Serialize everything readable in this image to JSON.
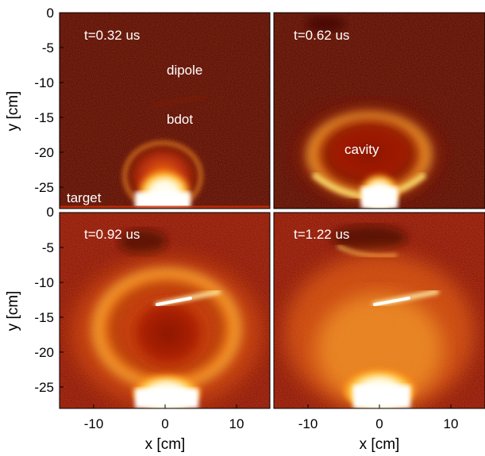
{
  "figure": {
    "panels": [
      {
        "time_label": "t=0.32 us",
        "annotations": [
          "dipole",
          "bdot",
          "target"
        ]
      },
      {
        "time_label": "t=0.62 us",
        "annotations": [
          "cavity"
        ]
      },
      {
        "time_label": "t=0.92 us",
        "annotations": []
      },
      {
        "time_label": "t=1.22 us",
        "annotations": []
      }
    ],
    "x_axis": {
      "title": "x [cm]",
      "ticks": [
        "-10",
        "0",
        "10"
      ]
    },
    "y_axis": {
      "title": "y [cm]",
      "top_panel_ticks": [
        "0",
        "-5",
        "-10",
        "-15",
        "-20",
        "-25"
      ],
      "bottom_panel_ticks": [
        "0",
        "-5",
        "-10",
        "-15",
        "-20",
        "-25"
      ]
    },
    "colormap": [
      "#2a0000",
      "#5a0a02",
      "#8e1406",
      "#c9300a",
      "#ee6a10",
      "#ffb72e",
      "#fff6c8",
      "#ffffff"
    ]
  }
}
